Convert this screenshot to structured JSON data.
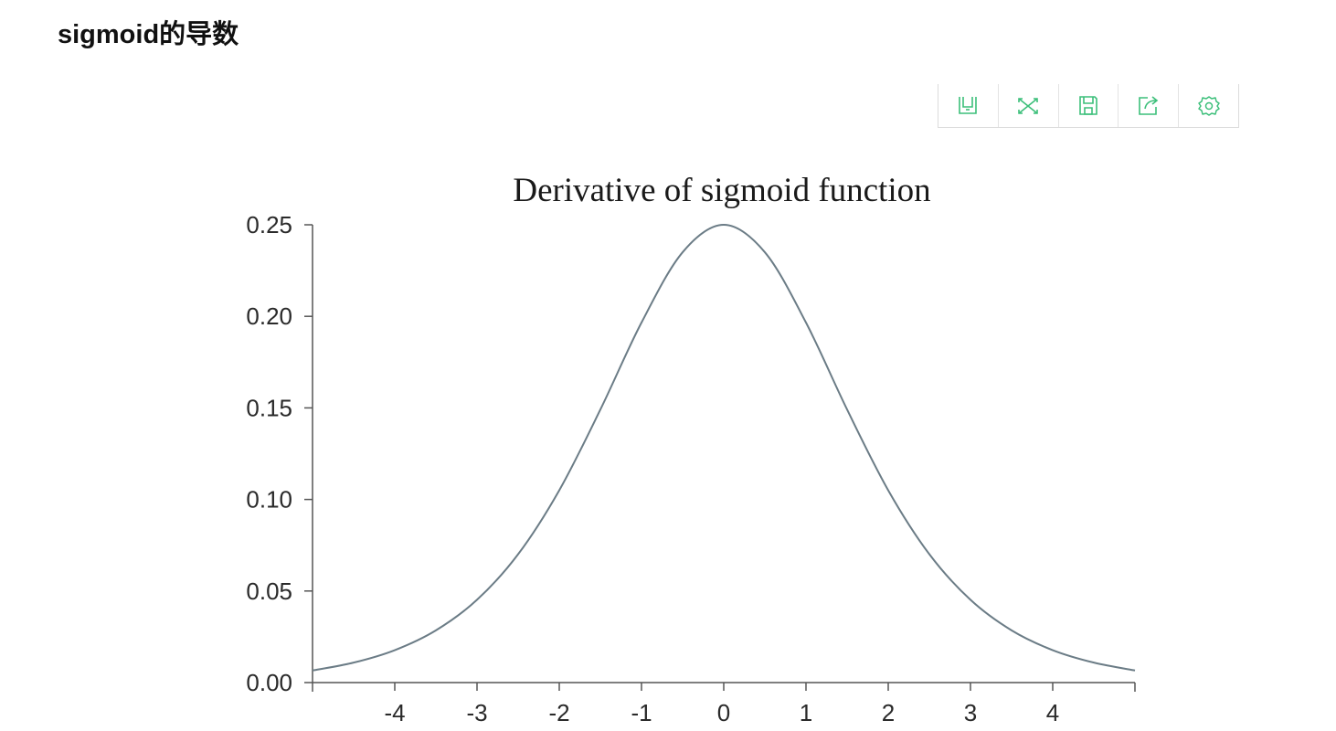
{
  "page": {
    "heading": "sigmoid的导数"
  },
  "toolbar": {
    "icons": [
      {
        "name": "save-data-icon"
      },
      {
        "name": "shuffle-icon"
      },
      {
        "name": "save-image-icon"
      },
      {
        "name": "share-icon"
      },
      {
        "name": "settings-icon"
      }
    ],
    "accent_color": "#3cbf7a"
  },
  "chart_data": {
    "type": "line",
    "title": "Derivative of sigmoid function",
    "xlabel": "",
    "ylabel": "",
    "xlim": [
      -5,
      5
    ],
    "ylim": [
      0,
      0.25
    ],
    "x_ticks": [
      -4,
      -3,
      -2,
      -1,
      0,
      1,
      2,
      3,
      4
    ],
    "x_tick_labels": [
      "-4",
      "-3",
      "-2",
      "-1",
      "0",
      "1",
      "2",
      "3",
      "4"
    ],
    "y_ticks": [
      0,
      0.05,
      0.1,
      0.15,
      0.2,
      0.25
    ],
    "y_tick_labels": [
      "0.00",
      "0.05",
      "0.10",
      "0.15",
      "0.20",
      "0.25"
    ],
    "grid": false,
    "legend": "none",
    "line_color": "#6b7c86",
    "series": [
      {
        "x": [
          -5,
          -4.5,
          -4,
          -3.5,
          -3,
          -2.5,
          -2,
          -1.5,
          -1,
          -0.5,
          0,
          0.5,
          1,
          1.5,
          2,
          2.5,
          3,
          3.5,
          4,
          4.5,
          5
        ],
        "values": [
          0.0066,
          0.0109,
          0.0177,
          0.0285,
          0.0452,
          0.0701,
          0.105,
          0.1491,
          0.1966,
          0.235,
          0.25,
          0.235,
          0.1966,
          0.1491,
          0.105,
          0.0701,
          0.0452,
          0.0285,
          0.0177,
          0.0109,
          0.0066
        ]
      }
    ]
  }
}
